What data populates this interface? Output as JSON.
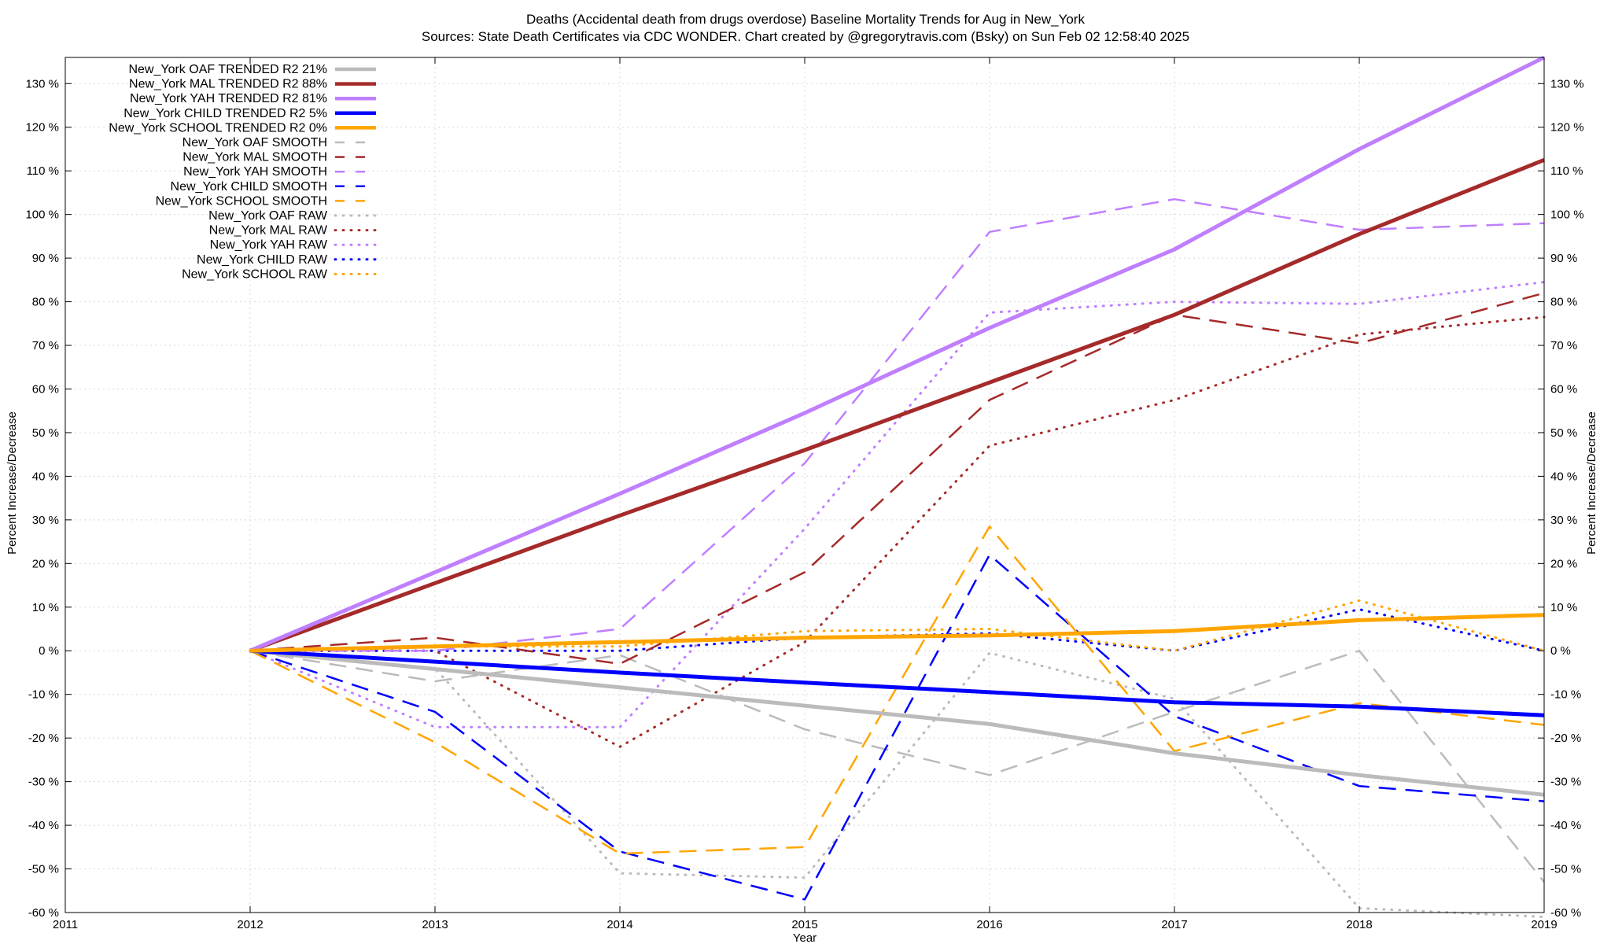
{
  "chart_data": {
    "type": "line",
    "title_line1": "Deaths (Accidental death from drugs overdose)  Baseline Mortality Trends for Aug in New_York",
    "title_line2": "Sources: State Death Certificates via CDC WONDER.              Chart created by @gregorytravis.com (Bsky) on Sun Feb 02 12:58:40 2025",
    "xlabel": "Year",
    "ylabel": "Percent Increase/Decrease",
    "y2label": "Percent Increase/Decrease",
    "xlim": [
      2011,
      2019
    ],
    "ylim": [
      -60,
      136
    ],
    "x_ticks": [
      "2011",
      "2012",
      "2013",
      "2014",
      "2015",
      "2016",
      "2017",
      "2018",
      "2019"
    ],
    "y_ticks": [
      {
        "v": 130,
        "label": "130 %"
      },
      {
        "v": 120,
        "label": "120 %"
      },
      {
        "v": 110,
        "label": "110 %"
      },
      {
        "v": 100,
        "label": "100 %"
      },
      {
        "v": 90,
        "label": "90 %"
      },
      {
        "v": 80,
        "label": "80 %"
      },
      {
        "v": 70,
        "label": "70 %"
      },
      {
        "v": 60,
        "label": "60 %"
      },
      {
        "v": 50,
        "label": "50 %"
      },
      {
        "v": 40,
        "label": "40 %"
      },
      {
        "v": 30,
        "label": "30 %"
      },
      {
        "v": 20,
        "label": "20 %"
      },
      {
        "v": 10,
        "label": "10 %"
      },
      {
        "v": 0,
        "label": "0 %"
      },
      {
        "v": -10,
        "label": "-10 %"
      },
      {
        "v": -20,
        "label": "-20 %"
      },
      {
        "v": -30,
        "label": "-30 %"
      },
      {
        "v": -40,
        "label": "-40 %"
      },
      {
        "v": -50,
        "label": "-50 %"
      },
      {
        "v": -60,
        "label": "-60 %"
      }
    ],
    "grid": true,
    "legend_position": "top-left",
    "x": [
      2012,
      2013,
      2014,
      2015,
      2016,
      2017,
      2018,
      2019
    ],
    "series": [
      {
        "name": "New_York OAF TRENDED R2  21%",
        "style": "solid",
        "color": "#bbbbbb",
        "values": [
          0,
          -4.2,
          -8.4,
          -12.6,
          -16.8,
          -23.5,
          -28.5,
          -33
        ]
      },
      {
        "name": "New_York MAL TRENDED R2  88%",
        "style": "solid",
        "color": "#a52a2a",
        "values": [
          0,
          15.5,
          31,
          46,
          61.5,
          77,
          95.5,
          112.5
        ]
      },
      {
        "name": "New_York YAH TRENDED R2  81%",
        "style": "solid",
        "color": "#bf7fff",
        "values": [
          0,
          18,
          36,
          54.5,
          74,
          92,
          115,
          136
        ]
      },
      {
        "name": "New_York CHILD TRENDED R2   5%",
        "style": "solid",
        "color": "#0000ff",
        "values": [
          0,
          -2.5,
          -5,
          -7.3,
          -9.5,
          -11.8,
          -12.8,
          -14.8
        ]
      },
      {
        "name": "New_York SCHOOL TRENDED R2   0%",
        "style": "solid",
        "color": "#ffa500",
        "values": [
          0,
          1,
          2,
          3,
          3.5,
          4.5,
          7,
          8.2
        ]
      },
      {
        "name": "New_York OAF SMOOTH",
        "style": "dashed",
        "color": "#bbbbbb",
        "values": [
          0,
          -7,
          -1,
          -18,
          -28.5,
          -14,
          0,
          -53
        ]
      },
      {
        "name": "New_York MAL SMOOTH",
        "style": "dashed",
        "color": "#a52a2a",
        "values": [
          0,
          3,
          -3,
          18,
          57.5,
          77,
          70.5,
          82
        ]
      },
      {
        "name": "New_York YAH SMOOTH",
        "style": "dashed",
        "color": "#bf7fff",
        "values": [
          0,
          0,
          5,
          43,
          96,
          103.5,
          96.5,
          98
        ]
      },
      {
        "name": "New_York CHILD SMOOTH",
        "style": "dashed",
        "color": "#0000ff",
        "values": [
          0,
          -14,
          -46,
          -57,
          22,
          -15,
          -31,
          -34.5
        ]
      },
      {
        "name": "New_York SCHOOL SMOOTH",
        "style": "dashed",
        "color": "#ffa500",
        "values": [
          0,
          -21,
          -46.5,
          -45,
          28.5,
          -23,
          -12,
          -17
        ]
      },
      {
        "name": "New_York OAF RAW",
        "style": "dotted",
        "color": "#bbbbbb",
        "values": [
          0,
          -4,
          -51,
          -52,
          -0.5,
          -11,
          -59,
          -61
        ]
      },
      {
        "name": "New_York MAL RAW",
        "style": "dotted",
        "color": "#a52a2a",
        "values": [
          0,
          0,
          -22,
          2,
          47,
          57.5,
          72.5,
          76.5
        ]
      },
      {
        "name": "New_York YAH RAW",
        "style": "dotted",
        "color": "#bf7fff",
        "values": [
          0,
          -17.5,
          -17.5,
          28,
          77.5,
          80,
          79.5,
          84.5
        ]
      },
      {
        "name": "New_York CHILD RAW",
        "style": "dotted",
        "color": "#0000ff",
        "values": [
          0,
          0,
          0,
          3,
          4,
          0,
          9.5,
          0
        ]
      },
      {
        "name": "New_York SCHOOL RAW",
        "style": "dotted",
        "color": "#ffa500",
        "values": [
          0,
          1,
          1,
          4.5,
          5,
          0,
          11.5,
          0
        ]
      }
    ]
  }
}
